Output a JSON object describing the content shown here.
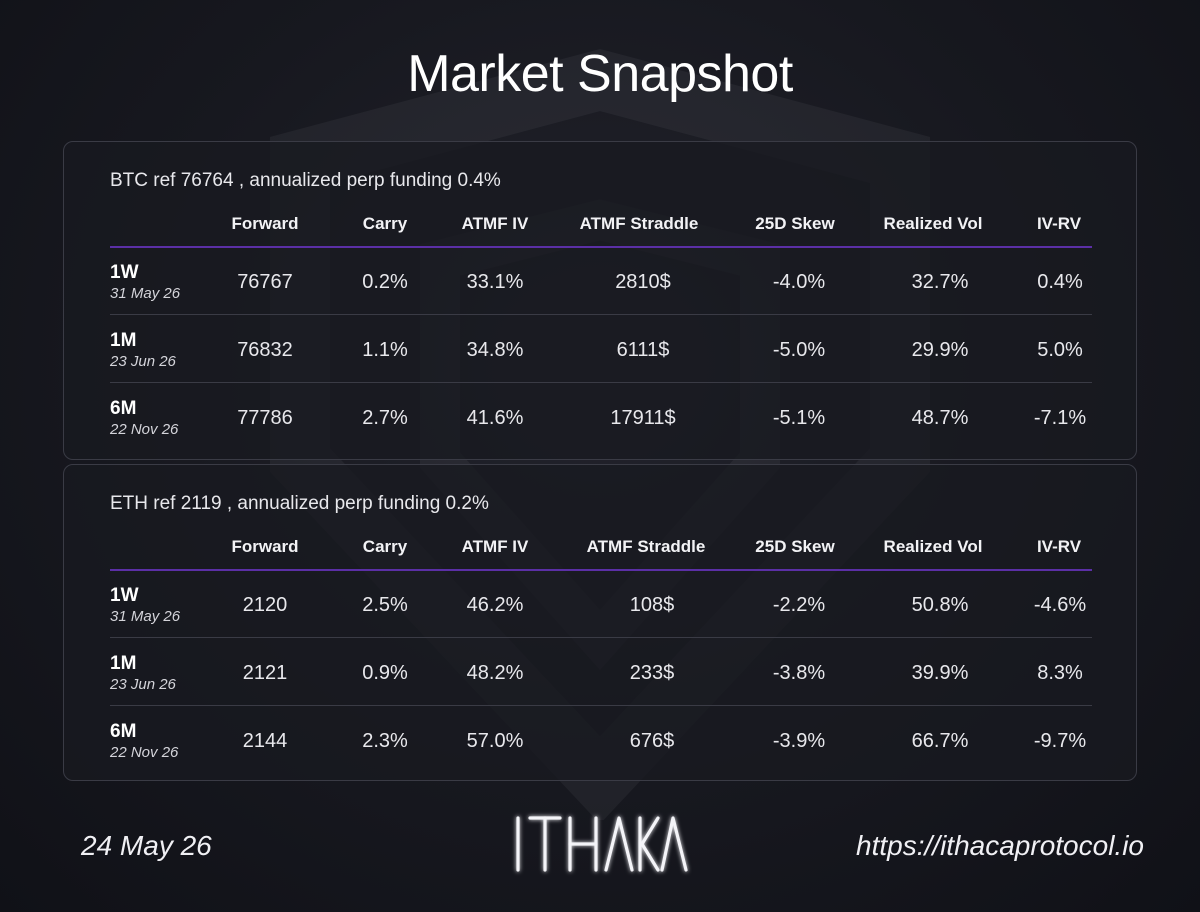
{
  "title": "Market Snapshot",
  "columns": [
    "Forward",
    "Carry",
    "ATMF IV",
    "ATMF Straddle",
    "25D Skew",
    "Realized Vol",
    "IV-RV"
  ],
  "panels": [
    {
      "heading": "BTC ref 76764 , annualized perp funding 0.4%",
      "rows": [
        {
          "tenor": "1W",
          "expiry": "31 May 26",
          "values": [
            "76767",
            "0.2%",
            "33.1%",
            "2810$",
            "-4.0%",
            "32.7%",
            "0.4%"
          ]
        },
        {
          "tenor": "1M",
          "expiry": "23 Jun 26",
          "values": [
            "76832",
            "1.1%",
            "34.8%",
            "6111$",
            "-5.0%",
            "29.9%",
            "5.0%"
          ]
        },
        {
          "tenor": "6M",
          "expiry": "22 Nov 26",
          "values": [
            "77786",
            "2.7%",
            "41.6%",
            "17911$",
            "-5.1%",
            "48.7%",
            "-7.1%"
          ]
        }
      ]
    },
    {
      "heading": "ETH ref 2119 , annualized perp funding 0.2%",
      "rows": [
        {
          "tenor": "1W",
          "expiry": "31 May 26",
          "values": [
            "2120",
            "2.5%",
            "46.2%",
            "108$",
            "-2.2%",
            "50.8%",
            "-4.6%"
          ]
        },
        {
          "tenor": "1M",
          "expiry": "23 Jun 26",
          "values": [
            "2121",
            "0.9%",
            "48.2%",
            "233$",
            "-3.8%",
            "39.9%",
            "8.3%"
          ]
        },
        {
          "tenor": "6M",
          "expiry": "22 Nov 26",
          "values": [
            "2144",
            "2.3%",
            "57.0%",
            "676$",
            "-3.9%",
            "66.7%",
            "-9.7%"
          ]
        }
      ]
    }
  ],
  "footer": {
    "date": "24 May 26",
    "logo_text": "ITHACA",
    "url": "https://ithacaprotocol.io"
  },
  "colors": {
    "background": "#17181f",
    "accent_line": "#5b2fa6",
    "panel_border": "#3a3b45",
    "text": "#e8e8ec"
  }
}
